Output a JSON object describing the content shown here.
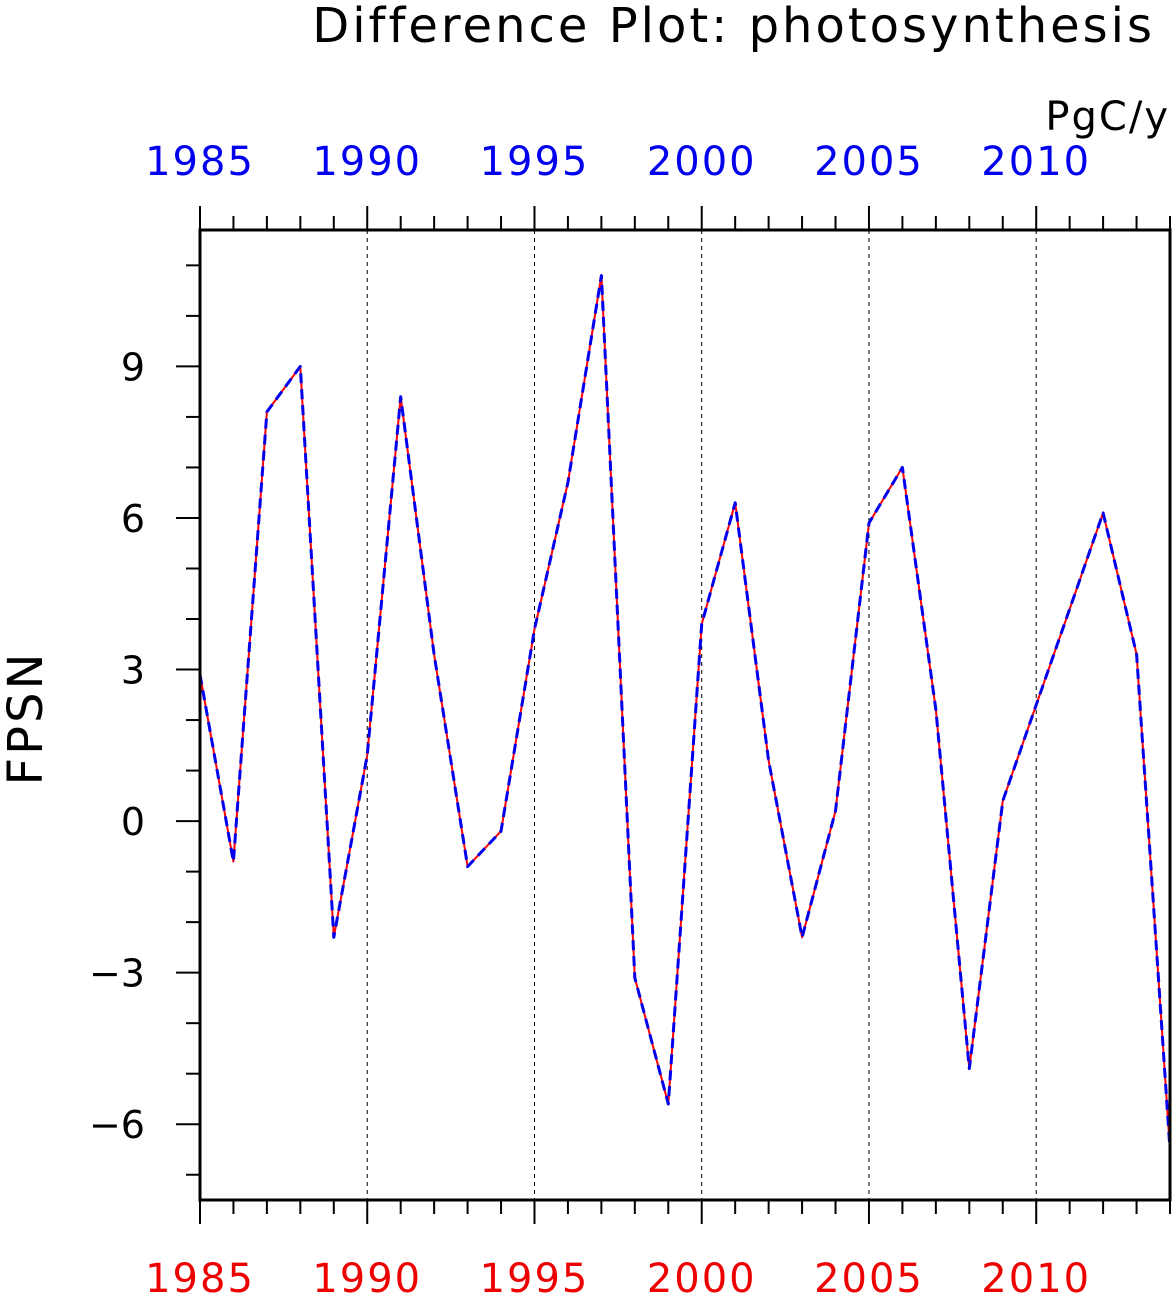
{
  "chart_data": {
    "type": "line",
    "title": "Difference Plot: photosynthesis",
    "units": "PgC/y",
    "ylabel": "FPSN",
    "xlabel": "",
    "xlim": [
      1985,
      2014
    ],
    "ylim": [
      -7.5,
      11.7
    ],
    "ytick_values": [
      -6,
      -3,
      0,
      3,
      6,
      9
    ],
    "ytick_labels": [
      "−6",
      "−3",
      "0",
      "3",
      "6",
      "9"
    ],
    "ytick_minor_step": 1,
    "xtick_values": [
      1985,
      1990,
      1995,
      2000,
      2005,
      2010
    ],
    "xtick_labels_top": [
      "1985",
      "1990",
      "1995",
      "2000",
      "2005",
      "2010"
    ],
    "xtick_labels_bottom": [
      "1985",
      "1990",
      "1995",
      "2000",
      "2005",
      "2010"
    ],
    "xtick_minor_step": 1,
    "vertical_gridlines": [
      1990,
      1995,
      2000,
      2005,
      2010
    ],
    "grid": "vertical dashed at major x ticks",
    "colors": {
      "top_axis_labels": "#0000ee",
      "bottom_axis_labels": "#ee0000",
      "series_red": "#ff0000",
      "series_blue": "#0000ee",
      "axes": "#000000"
    },
    "x": [
      1985,
      1986,
      1987,
      1988,
      1989,
      1990,
      1991,
      1992,
      1993,
      1994,
      1995,
      1996,
      1997,
      1998,
      1999,
      2000,
      2001,
      2002,
      2003,
      2004,
      2005,
      2006,
      2007,
      2008,
      2009,
      2010,
      2011,
      2012,
      2013,
      2014
    ],
    "series": [
      {
        "style": "solid",
        "color": "#ff0000",
        "values": [
          2.9,
          -0.8,
          8.1,
          9.0,
          -2.3,
          1.3,
          8.4,
          3.3,
          -0.9,
          -0.2,
          3.8,
          6.7,
          10.8,
          -3.1,
          -5.6,
          3.9,
          6.3,
          1.2,
          -2.3,
          0.2,
          5.9,
          7.0,
          2.2,
          -4.9,
          0.4,
          2.3,
          4.2,
          6.1,
          3.3,
          -6.5
        ]
      },
      {
        "style": "dashed",
        "color": "#0000ee",
        "values": [
          2.9,
          -0.8,
          8.1,
          9.0,
          -2.3,
          1.3,
          8.4,
          3.3,
          -0.9,
          -0.2,
          3.8,
          6.7,
          10.8,
          -3.1,
          -5.6,
          3.9,
          6.3,
          1.2,
          -2.3,
          0.2,
          5.9,
          7.0,
          2.2,
          -4.9,
          0.4,
          2.3,
          4.2,
          6.1,
          3.3,
          -6.5
        ]
      }
    ]
  }
}
